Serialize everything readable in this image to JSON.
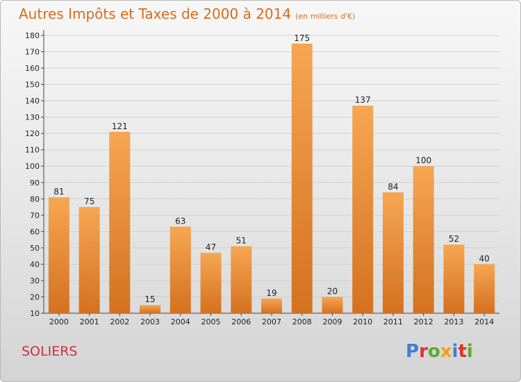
{
  "header": {
    "title": "Autres Impôts et Taxes de 2000 à 2014",
    "subtitle": "(en milliers d'€)"
  },
  "footer": {
    "place": "SOLIERS",
    "brand": "Proxiti"
  },
  "colors": {
    "bar_light": "#f6a652",
    "bar_dark": "#d4711f",
    "title": "#d96a1a",
    "place": "#c8303f",
    "brand": [
      "#3d7fd1",
      "#e0302c",
      "#5aab2e",
      "#f1a01b",
      "#3d7fd1",
      "#e0302c",
      "#5aab2e"
    ]
  },
  "chart_data": {
    "type": "bar",
    "categories": [
      "2000",
      "2001",
      "2002",
      "2003",
      "2004",
      "2005",
      "2006",
      "2007",
      "2008",
      "2009",
      "2010",
      "2011",
      "2012",
      "2013",
      "2014"
    ],
    "values": [
      81,
      75,
      121,
      15,
      63,
      47,
      51,
      19,
      175,
      20,
      137,
      84,
      100,
      52,
      40
    ],
    "ylim": [
      10,
      180
    ],
    "yticks": [
      10,
      20,
      30,
      40,
      50,
      60,
      70,
      80,
      90,
      100,
      110,
      120,
      130,
      140,
      150,
      160,
      170,
      180
    ],
    "grid": "horizontal",
    "data_labels": true
  }
}
